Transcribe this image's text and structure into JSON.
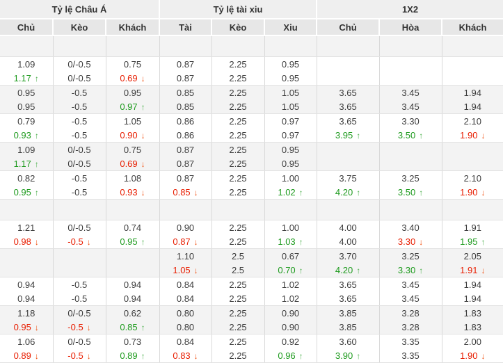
{
  "icons": {
    "up": "↑",
    "down": "↓"
  },
  "colors": {
    "up_text": "#1d9a1d",
    "down_text": "#e81d00",
    "up_arrow": "#4cb04c",
    "down_arrow": "#f04f0f",
    "header_bg": "#efefef",
    "subheader_bg": "#e7e7e7",
    "stripe_bg": "#f3f3f3"
  },
  "table": {
    "sections": [
      {
        "title": "Tỷ lệ Châu Á",
        "columns": [
          "Chủ",
          "Kèo",
          "Khách"
        ]
      },
      {
        "title": "Tỷ lệ tài xiu",
        "columns": [
          "Tài",
          "Kèo",
          "Xiu"
        ]
      },
      {
        "title": "1X2",
        "columns": [
          "Chủ",
          "Hòa",
          "Khách"
        ]
      }
    ],
    "rows": [
      {
        "type": "spacer"
      },
      {
        "type": "group",
        "shade": "white",
        "lines": [
          [
            "1.09",
            "0/-0.5",
            "0.75",
            "0.87",
            "2.25",
            "0.95",
            "",
            "",
            ""
          ],
          [
            [
              "1.17",
              "up"
            ],
            "0/-0.5",
            [
              "0.69",
              "down"
            ],
            "0.87",
            "2.25",
            "0.95",
            "",
            "",
            ""
          ]
        ]
      },
      {
        "type": "group",
        "shade": "gray",
        "lines": [
          [
            "0.95",
            "-0.5",
            "0.95",
            "0.85",
            "2.25",
            "1.05",
            "3.65",
            "3.45",
            "1.94"
          ],
          [
            "0.95",
            "-0.5",
            [
              "0.97",
              "up"
            ],
            "0.85",
            "2.25",
            "1.05",
            "3.65",
            "3.45",
            "1.94"
          ]
        ]
      },
      {
        "type": "group",
        "shade": "white",
        "lines": [
          [
            "0.79",
            "-0.5",
            "1.05",
            "0.86",
            "2.25",
            "0.97",
            "3.65",
            "3.30",
            "2.10"
          ],
          [
            [
              "0.93",
              "up"
            ],
            "-0.5",
            [
              "0.90",
              "down"
            ],
            "0.86",
            "2.25",
            "0.97",
            [
              "3.95",
              "up"
            ],
            [
              "3.50",
              "up"
            ],
            [
              "1.90",
              "down"
            ]
          ]
        ]
      },
      {
        "type": "group",
        "shade": "gray",
        "lines": [
          [
            "1.09",
            "0/-0.5",
            "0.75",
            "0.87",
            "2.25",
            "0.95",
            "",
            "",
            ""
          ],
          [
            [
              "1.17",
              "up"
            ],
            "0/-0.5",
            [
              "0.69",
              "down"
            ],
            "0.87",
            "2.25",
            "0.95",
            "",
            "",
            ""
          ]
        ]
      },
      {
        "type": "group",
        "shade": "white",
        "lines": [
          [
            "0.82",
            "-0.5",
            "1.08",
            "0.87",
            "2.25",
            "1.00",
            "3.75",
            "3.25",
            "2.10"
          ],
          [
            [
              "0.95",
              "up"
            ],
            "-0.5",
            [
              "0.93",
              "down"
            ],
            [
              "0.85",
              "down"
            ],
            "2.25",
            [
              "1.02",
              "up"
            ],
            [
              "4.20",
              "up"
            ],
            [
              "3.50",
              "up"
            ],
            [
              "1.90",
              "down"
            ]
          ]
        ]
      },
      {
        "type": "spacer"
      },
      {
        "type": "group",
        "shade": "white",
        "lines": [
          [
            "1.21",
            "0/-0.5",
            "0.74",
            "0.90",
            "2.25",
            "1.00",
            "4.00",
            "3.40",
            "1.91"
          ],
          [
            [
              "0.98",
              "down"
            ],
            [
              "-0.5",
              "down"
            ],
            [
              "0.95",
              "up"
            ],
            [
              "0.87",
              "down"
            ],
            "2.25",
            [
              "1.03",
              "up"
            ],
            "4.00",
            [
              "3.30",
              "down"
            ],
            [
              "1.95",
              "up"
            ]
          ]
        ]
      },
      {
        "type": "group",
        "shade": "gray",
        "lines": [
          [
            "",
            "",
            "",
            "1.10",
            "2.5",
            "0.67",
            "3.70",
            "3.25",
            "2.05"
          ],
          [
            "",
            "",
            "",
            [
              "1.05",
              "down"
            ],
            "2.5",
            [
              "0.70",
              "up"
            ],
            [
              "4.20",
              "up"
            ],
            [
              "3.30",
              "up"
            ],
            [
              "1.91",
              "down"
            ]
          ]
        ]
      },
      {
        "type": "group",
        "shade": "white",
        "lines": [
          [
            "0.94",
            "-0.5",
            "0.94",
            "0.84",
            "2.25",
            "1.02",
            "3.65",
            "3.45",
            "1.94"
          ],
          [
            "0.94",
            "-0.5",
            "0.94",
            "0.84",
            "2.25",
            "1.02",
            "3.65",
            "3.45",
            "1.94"
          ]
        ]
      },
      {
        "type": "group",
        "shade": "gray",
        "lines": [
          [
            "1.18",
            "0/-0.5",
            "0.62",
            "0.80",
            "2.25",
            "0.90",
            "3.85",
            "3.28",
            "1.83"
          ],
          [
            [
              "0.95",
              "down"
            ],
            [
              "-0.5",
              "down"
            ],
            [
              "0.85",
              "up"
            ],
            "0.80",
            "2.25",
            "0.90",
            "3.85",
            "3.28",
            "1.83"
          ]
        ]
      },
      {
        "type": "group",
        "shade": "white",
        "lines": [
          [
            "1.06",
            "0/-0.5",
            "0.73",
            "0.84",
            "2.25",
            "0.92",
            "3.60",
            "3.35",
            "2.00"
          ],
          [
            [
              "0.89",
              "down"
            ],
            [
              "-0.5",
              "down"
            ],
            [
              "0.89",
              "up"
            ],
            [
              "0.83",
              "down"
            ],
            "2.25",
            [
              "0.96",
              "up"
            ],
            [
              "3.90",
              "up"
            ],
            "3.35",
            [
              "1.90",
              "down"
            ]
          ]
        ]
      }
    ]
  }
}
